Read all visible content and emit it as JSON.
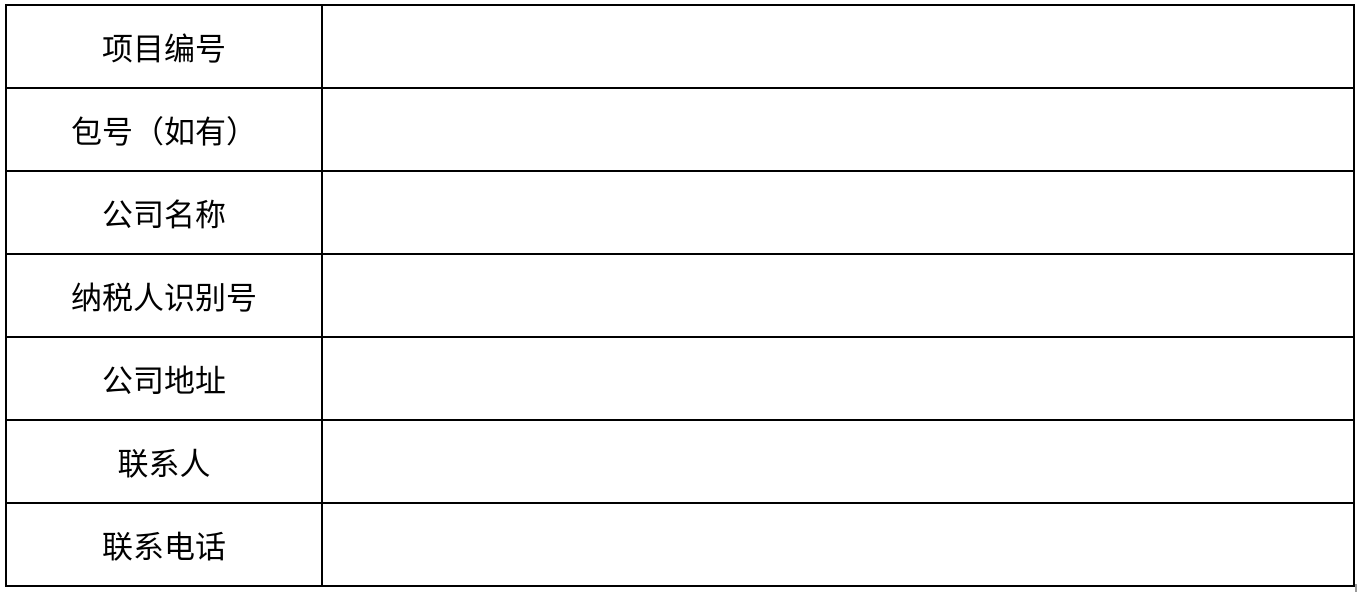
{
  "form": {
    "rows": [
      {
        "label": "项目编号",
        "value": ""
      },
      {
        "label": "包号（如有）",
        "value": ""
      },
      {
        "label": "公司名称",
        "value": ""
      },
      {
        "label": "纳税人识别号",
        "value": ""
      },
      {
        "label": "公司地址",
        "value": ""
      },
      {
        "label": "联系人",
        "value": ""
      },
      {
        "label": "联系电话",
        "value": ""
      }
    ]
  }
}
